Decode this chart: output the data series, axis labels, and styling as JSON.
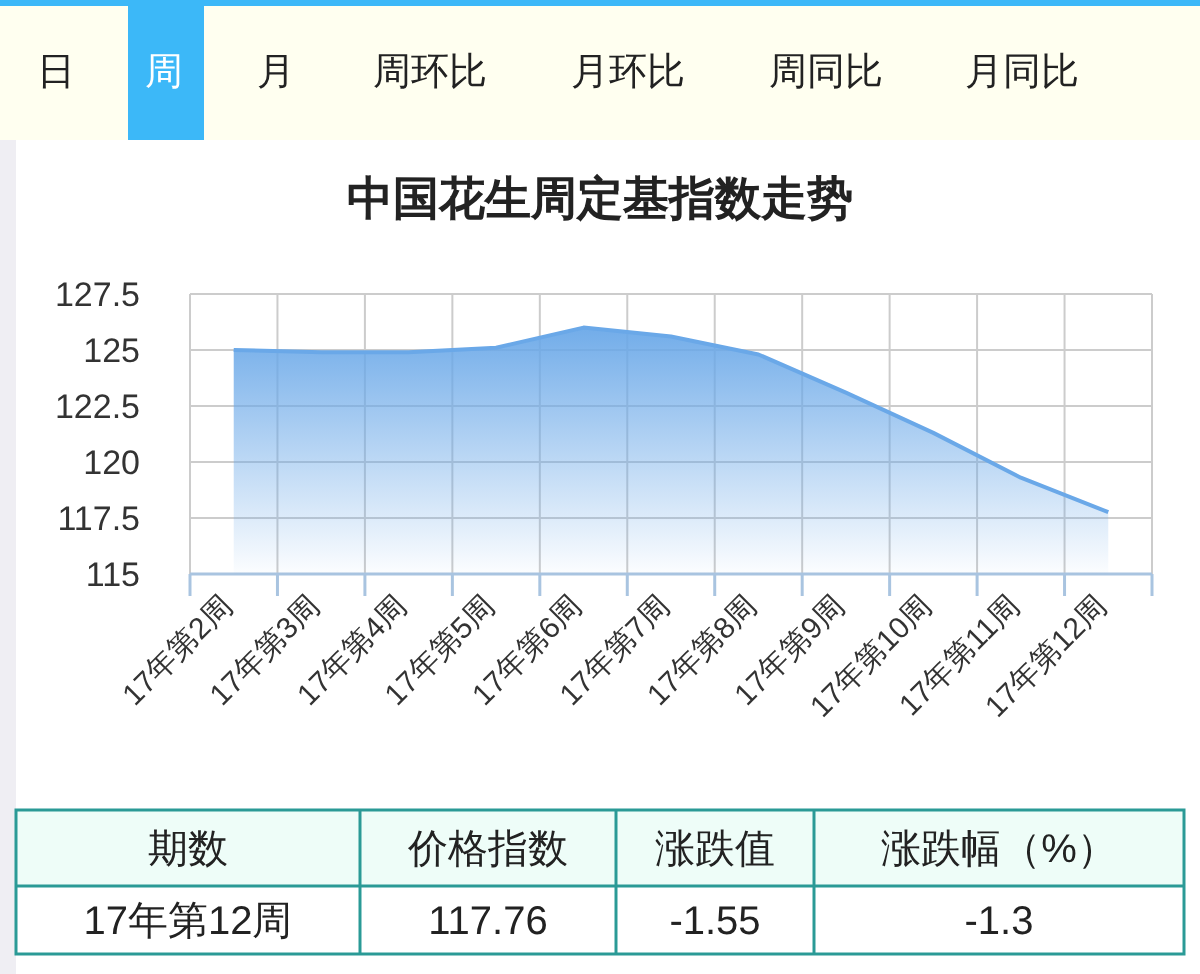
{
  "chart_data": [
    {
      "type": "other",
      "annotations": [
        "日",
        "周",
        "月",
        "周环比",
        "月环比",
        "周同比",
        "月同比"
      ]
    },
    {
      "type": "area",
      "title": "中国花生周定基指数走势",
      "categories": [
        "17年第2周",
        "17年第3周",
        "17年第4周",
        "17年第5周",
        "17年第6周",
        "17年第7周",
        "17年第8周",
        "17年第9周",
        "17年第10周",
        "17年第11周",
        "17年第12周"
      ],
      "series": [
        {
          "color": "#6aa8e8",
          "values": [
            125.0,
            124.9,
            124.9,
            125.1,
            126.0,
            125.6,
            124.8,
            123.1,
            121.3,
            119.3,
            117.76
          ]
        }
      ],
      "ylim": [
        115,
        127.5
      ],
      "yticks": [
        115,
        117.5,
        120,
        122.5,
        125,
        127.5
      ],
      "grid": true,
      "marker": "none"
    },
    {
      "type": "other",
      "annotations": [
        "期数",
        "价格指数",
        "涨跌值",
        "涨跌幅（%）",
        "17年第12周",
        "117.76",
        "-1.55",
        "-1.3"
      ]
    }
  ]
}
